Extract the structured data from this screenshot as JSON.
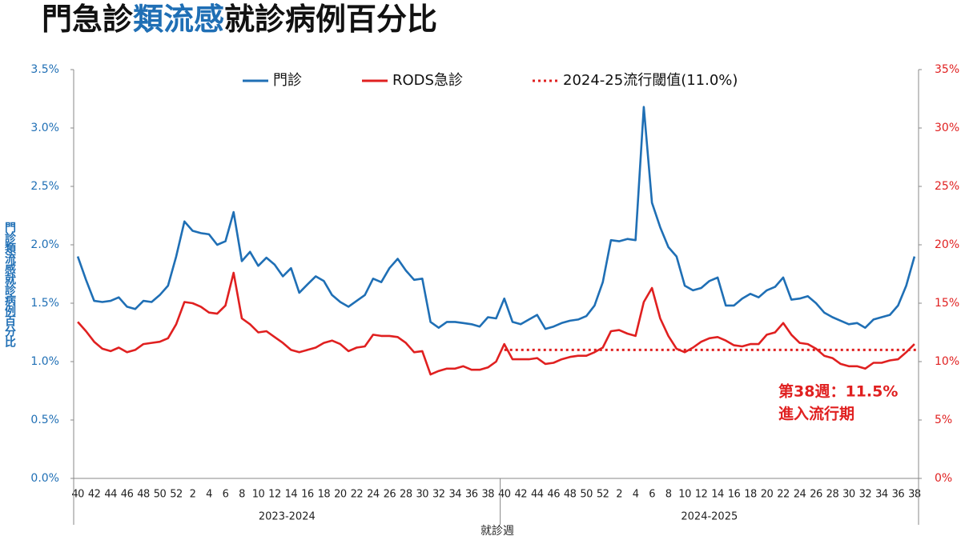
{
  "chart_data": {
    "type": "line",
    "title_parts": [
      {
        "text": "門急診",
        "color": "#111111"
      },
      {
        "text": "類流感",
        "color": "#1f6fb5"
      },
      {
        "text": "就診病例百分比",
        "color": "#111111"
      }
    ],
    "y_label": "門診類流感就診病例百分比",
    "x_label": "就診週",
    "groups": [
      {
        "label": "2023-2024",
        "categories": [
          "40",
          null,
          "42",
          null,
          "44",
          null,
          "46",
          null,
          "48",
          null,
          "50",
          null,
          "52",
          null,
          "2",
          null,
          "4",
          null,
          "6",
          null,
          "8",
          null,
          "10",
          null,
          "12",
          null,
          "14",
          null,
          "16",
          null,
          "18",
          null,
          "20",
          null,
          "22",
          null,
          "24",
          null,
          "26",
          null,
          "28",
          null,
          "30",
          null,
          "32",
          null,
          "34",
          null,
          "36",
          null,
          "38",
          null
        ]
      },
      {
        "label": "2024-2025",
        "categories": [
          "40",
          null,
          "42",
          null,
          "44",
          null,
          "46",
          null,
          "48",
          null,
          "50",
          null,
          "52",
          null,
          "2",
          null,
          "4",
          null,
          "6",
          null,
          "8",
          null,
          "10",
          null,
          "12",
          null,
          "14",
          null,
          "16",
          null,
          "18",
          null,
          "20",
          null,
          "22",
          null,
          "24",
          null,
          "26",
          null,
          "28",
          null,
          "30",
          null,
          "32",
          null,
          "34",
          null,
          "36",
          null,
          "38"
        ]
      }
    ],
    "series": [
      {
        "name": "門診",
        "color": "#1f6fb5",
        "axis": "y",
        "values": [
          1.9,
          1.7,
          1.52,
          1.51,
          1.52,
          1.55,
          1.47,
          1.45,
          1.52,
          1.51,
          1.57,
          1.65,
          1.9,
          2.2,
          2.12,
          2.1,
          2.09,
          2.0,
          2.03,
          2.28,
          1.86,
          1.94,
          1.82,
          1.89,
          1.83,
          1.73,
          1.8,
          1.59,
          1.66,
          1.73,
          1.69,
          1.57,
          1.51,
          1.47,
          1.52,
          1.57,
          1.71,
          1.68,
          1.8,
          1.88,
          1.78,
          1.7,
          1.71,
          1.34,
          1.29,
          1.34,
          1.34,
          1.33,
          1.32,
          1.3,
          1.38,
          1.37,
          1.54,
          1.34,
          1.32,
          1.36,
          1.4,
          1.28,
          1.3,
          1.33,
          1.35,
          1.36,
          1.39,
          1.48,
          1.68,
          2.04,
          2.03,
          2.05,
          2.04,
          3.18,
          2.36,
          2.15,
          1.98,
          1.9,
          1.65,
          1.61,
          1.63,
          1.69,
          1.72,
          1.48,
          1.48,
          1.54,
          1.58,
          1.55,
          1.61,
          1.64,
          1.72,
          1.53,
          1.54,
          1.56,
          1.5,
          1.42,
          1.38,
          1.35,
          1.32,
          1.33,
          1.29,
          1.36,
          1.38,
          1.4,
          1.48,
          1.65,
          1.9
        ]
      },
      {
        "name": "RODS急診",
        "color": "#e02020",
        "axis": "y2",
        "values": [
          13.4,
          12.6,
          11.7,
          11.1,
          10.9,
          11.2,
          10.8,
          11.0,
          11.5,
          11.6,
          11.7,
          12.0,
          13.2,
          15.1,
          15.0,
          14.7,
          14.2,
          14.1,
          14.8,
          17.6,
          13.7,
          13.2,
          12.5,
          12.6,
          12.1,
          11.6,
          11.0,
          10.8,
          11.0,
          11.2,
          11.6,
          11.8,
          11.5,
          10.9,
          11.2,
          11.3,
          12.3,
          12.2,
          12.2,
          12.1,
          11.6,
          10.8,
          10.9,
          8.9,
          9.2,
          9.4,
          9.4,
          9.6,
          9.3,
          9.3,
          9.5,
          10.0,
          11.5,
          10.2,
          10.2,
          10.2,
          10.3,
          9.8,
          9.9,
          10.2,
          10.4,
          10.5,
          10.5,
          10.8,
          11.2,
          12.6,
          12.7,
          12.4,
          12.2,
          15.1,
          16.3,
          13.7,
          12.2,
          11.1,
          10.8,
          11.2,
          11.7,
          12.0,
          12.1,
          11.8,
          11.4,
          11.3,
          11.5,
          11.5,
          12.3,
          12.5,
          13.3,
          12.3,
          11.6,
          11.5,
          11.1,
          10.5,
          10.3,
          9.8,
          9.6,
          9.6,
          9.4,
          9.9,
          9.9,
          10.1,
          10.2,
          10.8,
          11.5
        ]
      }
    ],
    "threshold": {
      "name": "2024-25流行閾值(11.0%)",
      "value": 11.0,
      "axis": "y2",
      "color": "#e02020",
      "style": "dotted"
    },
    "annotations": [
      "第38週：11.5%",
      "進入流行期"
    ],
    "annotation_color": "#e02020",
    "ylim": [
      0,
      3.5
    ],
    "yticks": [
      {
        "value": 0,
        "label": "0.0%"
      },
      {
        "value": 0.5,
        "label": "0.5%"
      },
      {
        "value": 1,
        "label": "1.0%"
      },
      {
        "value": 1.5,
        "label": "1.5%"
      },
      {
        "value": 2,
        "label": "2.0%"
      },
      {
        "value": 2.5,
        "label": "2.5%"
      },
      {
        "value": 3,
        "label": "3.0%"
      },
      {
        "value": 3.5,
        "label": "3.5%"
      }
    ],
    "y2lim": [
      0,
      35
    ],
    "y2ticks": [
      {
        "value": 0,
        "label": "0%"
      },
      {
        "value": 5,
        "label": "5%"
      },
      {
        "value": 10,
        "label": "10%"
      },
      {
        "value": 15,
        "label": "15%"
      },
      {
        "value": 20,
        "label": "20%"
      },
      {
        "value": 25,
        "label": "25%"
      },
      {
        "value": 30,
        "label": "30%"
      },
      {
        "value": 35,
        "label": "35%"
      }
    ],
    "grid": false,
    "legend": "top"
  }
}
